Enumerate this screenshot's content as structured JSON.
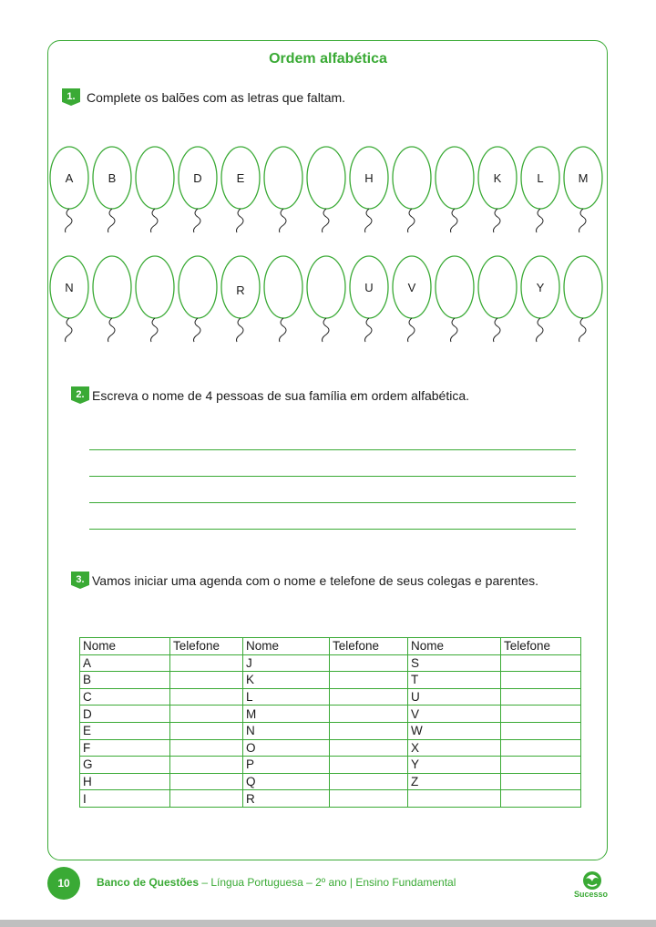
{
  "page_title": "Ordem alfabética",
  "q1": {
    "number": "1.",
    "text": "Complete os balões com as letras que faltam."
  },
  "balloon_rows": [
    [
      "A",
      "B",
      "",
      "D",
      "E",
      "",
      "",
      "H",
      "",
      "",
      "K",
      "L",
      "M"
    ],
    [
      "N",
      "",
      "",
      "",
      "R",
      "",
      "",
      "U",
      "V",
      "",
      "",
      "Y",
      ""
    ]
  ],
  "q2": {
    "number": "2.",
    "text": "Escreva o nome de 4 pessoas de sua família em ordem alfabética."
  },
  "q2_line_count": 4,
  "q3": {
    "number": "3.",
    "text": "Vamos iniciar uma agenda com o nome e telefone de seus colegas e parentes."
  },
  "agenda": {
    "headers": [
      "Nome",
      "Telefone",
      "Nome",
      "Telefone",
      "Nome",
      "Telefone"
    ],
    "rows": [
      [
        "A",
        "",
        "J",
        "",
        "S",
        ""
      ],
      [
        "B",
        "",
        "K",
        "",
        "T",
        ""
      ],
      [
        "C",
        "",
        "L",
        "",
        "U",
        ""
      ],
      [
        "D",
        "",
        "M",
        "",
        "V",
        ""
      ],
      [
        "E",
        "",
        "N",
        "",
        "W",
        ""
      ],
      [
        "F",
        "",
        "O",
        "",
        "X",
        ""
      ],
      [
        "G",
        "",
        "P",
        "",
        "Y",
        ""
      ],
      [
        "H",
        "",
        "Q",
        "",
        "Z",
        ""
      ],
      [
        "I",
        "",
        "R",
        "",
        "",
        ""
      ]
    ]
  },
  "footer": {
    "page_number": "10",
    "book": "Banco de Questões",
    "subtitle": " – Língua Portuguesa – 2º ano | Ensino Fundamental",
    "logo_text": "Sucesso"
  },
  "colors": {
    "accent": "#3aaa35"
  }
}
